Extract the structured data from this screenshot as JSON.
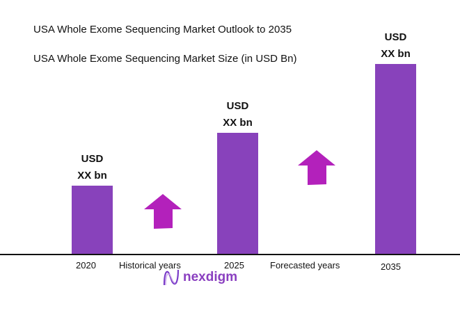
{
  "chart_data": {
    "type": "bar",
    "title": "USA Whole Exome Sequencing Market Outlook to 2035",
    "subtitle": "USA Whole Exome Sequencing Market Size (in USD Bn)",
    "categories": [
      "2020",
      "2025",
      "2035"
    ],
    "relative_values": [
      0.36,
      0.64,
      1.0
    ],
    "data_labels": [
      {
        "line1": "USD",
        "line2": "XX bn"
      },
      {
        "line1": "USD",
        "line2": "XX bn"
      },
      {
        "line1": "USD",
        "line2": "XX bn"
      }
    ],
    "period_labels": [
      "Historical years",
      "Forecasted years"
    ],
    "bar_color": "#8842bb",
    "arrow_color": "#b321bb",
    "grid": false
  },
  "branding": {
    "logo_text": "nexdigm"
  }
}
